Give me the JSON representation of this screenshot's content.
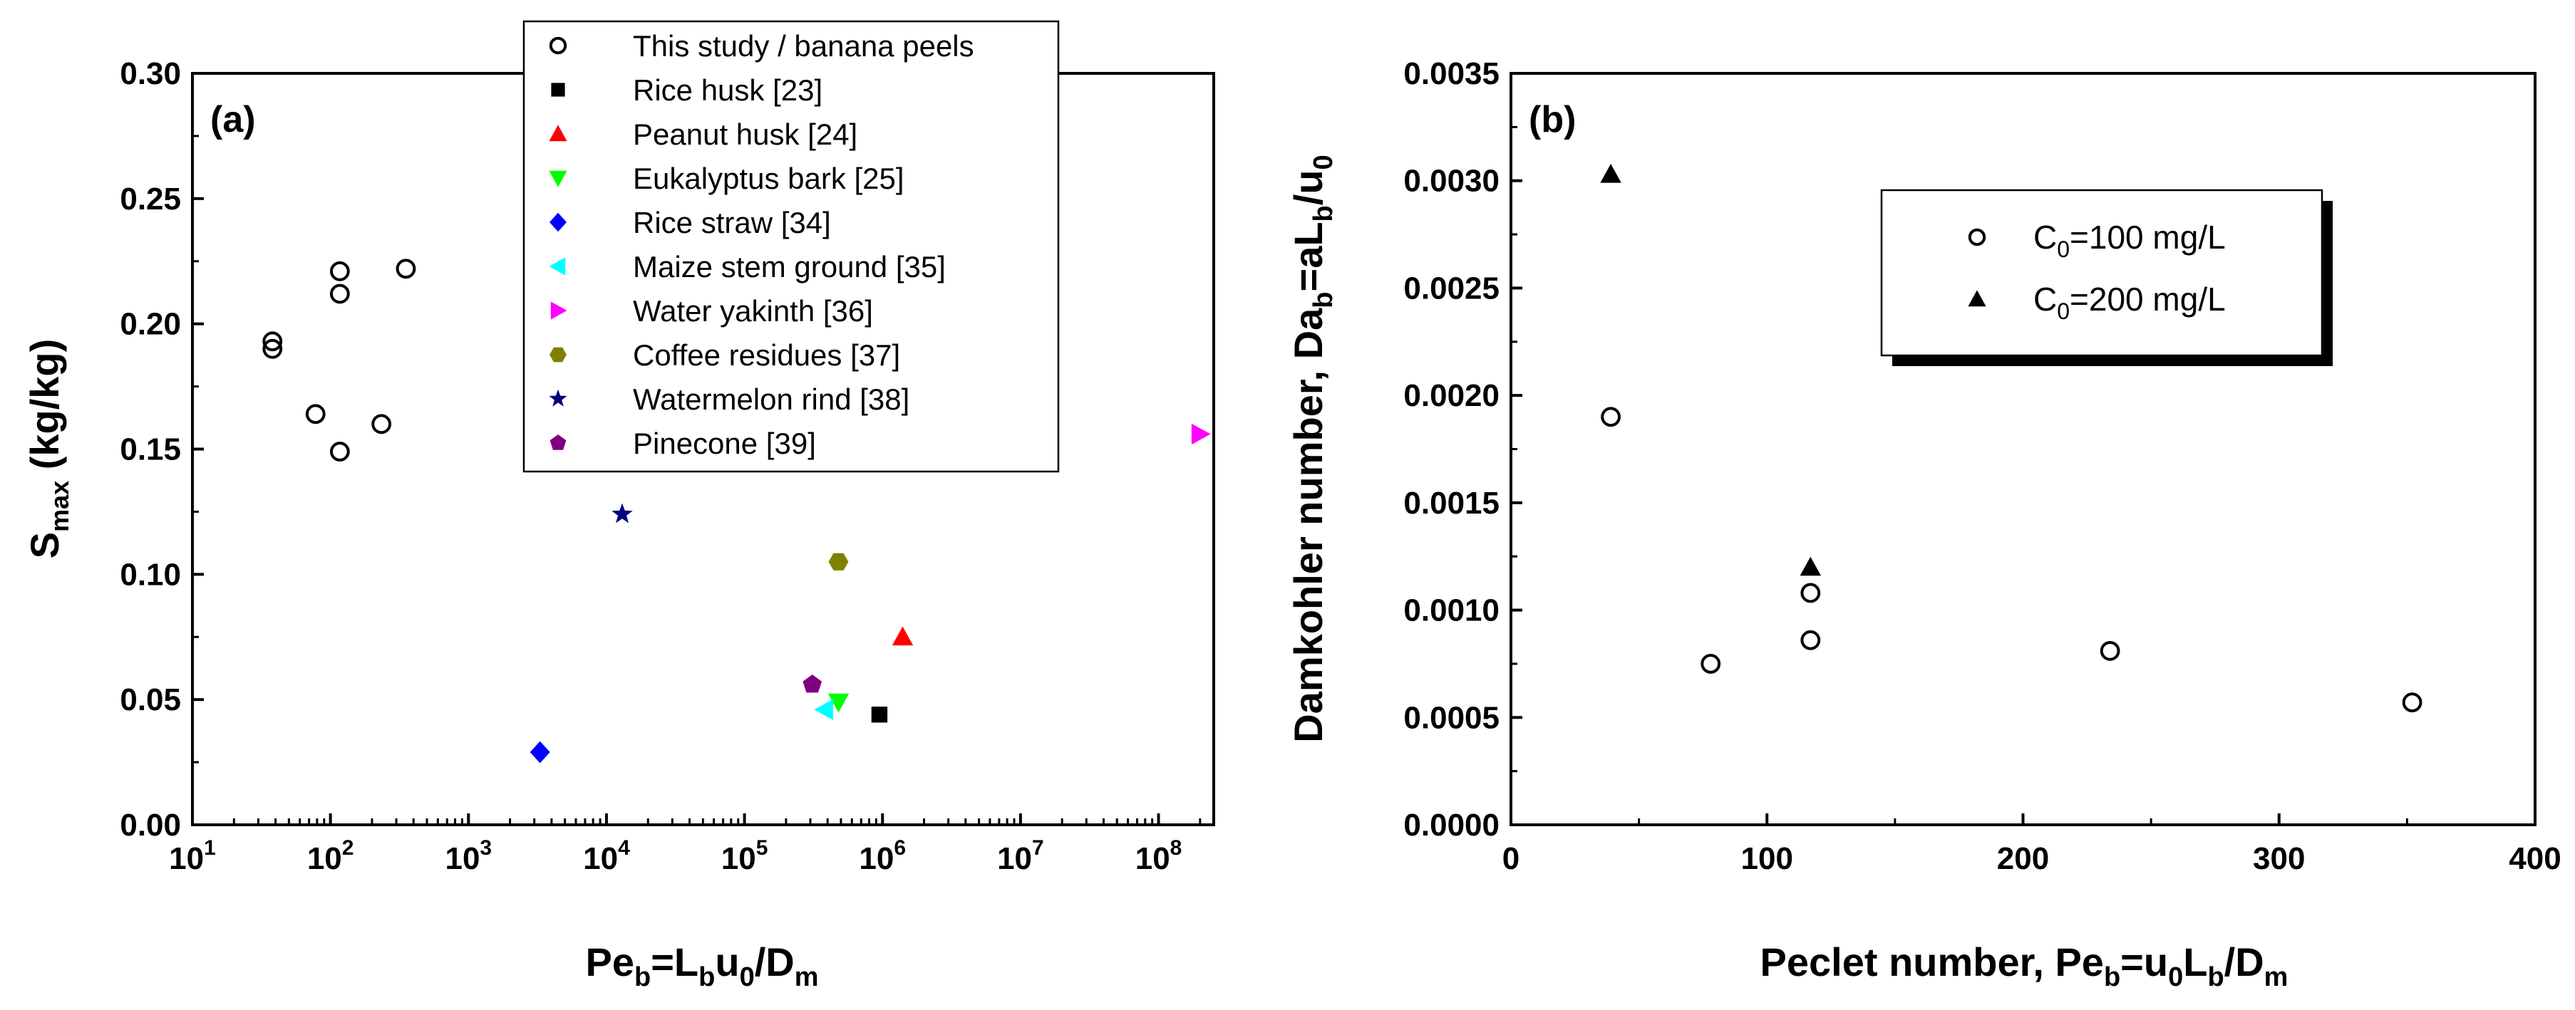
{
  "chart_data": [
    {
      "panel": "(a)",
      "type": "scatter",
      "xscale": "log",
      "xlim_exp": [
        1,
        8.4
      ],
      "ylim": [
        0,
        0.3
      ],
      "ylabel": {
        "main": "S",
        "sub": "max",
        "rest": " (kg/kg)"
      },
      "xlabel": {
        "main": "Pe",
        "sub1": "b",
        "mid": "=L",
        "sub2": "b",
        "mid2": "u",
        "sub3": "0",
        "mid3": "/D",
        "sub4": "m"
      },
      "yticks": [
        "0.00",
        "0.05",
        "0.10",
        "0.15",
        "0.20",
        "0.25",
        "0.30"
      ],
      "ytick_values": [
        0,
        0.05,
        0.1,
        0.15,
        0.2,
        0.25,
        0.3
      ],
      "xticks": [
        {
          "base": "10",
          "exp": "1"
        },
        {
          "base": "10",
          "exp": "2"
        },
        {
          "base": "10",
          "exp": "3"
        },
        {
          "base": "10",
          "exp": "4"
        },
        {
          "base": "10",
          "exp": "5"
        },
        {
          "base": "10",
          "exp": "6"
        },
        {
          "base": "10",
          "exp": "7"
        },
        {
          "base": "10",
          "exp": "8"
        }
      ],
      "series": [
        {
          "name": "This study / banana peels",
          "marker": "circle-open",
          "color": "#000000",
          "x": [
            38,
            38,
            78,
            117,
            117,
            117,
            234,
            352
          ],
          "y": [
            0.193,
            0.19,
            0.164,
            0.221,
            0.212,
            0.149,
            0.16,
            0.222
          ]
        },
        {
          "name": "Rice husk [23]",
          "marker": "square",
          "color": "#000000",
          "x": [
            950000
          ],
          "y": [
            0.044
          ]
        },
        {
          "name": "Peanut husk [24]",
          "marker": "triangle-up",
          "color": "#ff0000",
          "x": [
            1400000
          ],
          "y": [
            0.075
          ]
        },
        {
          "name": "Eukalyptus bark [25]",
          "marker": "triangle-down",
          "color": "#00ff00",
          "x": [
            480000
          ],
          "y": [
            0.049
          ]
        },
        {
          "name": "Rice straw [34]",
          "marker": "diamond",
          "color": "#0000ff",
          "x": [
            3300
          ],
          "y": [
            0.029
          ]
        },
        {
          "name": "Maize stem ground [35]",
          "marker": "triangle-left",
          "color": "#00ffff",
          "x": [
            380000
          ],
          "y": [
            0.046
          ]
        },
        {
          "name": "Water yakinth [36]",
          "marker": "triangle-right",
          "color": "#ff00ff",
          "x": [
            200000000
          ],
          "y": [
            0.156
          ]
        },
        {
          "name": "Coffee residues [37]",
          "marker": "hexagon",
          "color": "#808000",
          "x": [
            480000
          ],
          "y": [
            0.105
          ]
        },
        {
          "name": "Watermelon rind [38]",
          "marker": "star",
          "color": "#000080",
          "x": [
            13000
          ],
          "y": [
            0.124
          ]
        },
        {
          "name": "Pinecone [39]",
          "marker": "pentagon",
          "color": "#800080",
          "x": [
            310000
          ],
          "y": [
            0.056
          ]
        }
      ],
      "legend_position": "top-center"
    },
    {
      "panel": "(b)",
      "type": "scatter",
      "xlim": [
        0,
        400
      ],
      "ylim": [
        0,
        0.0035
      ],
      "xticks": [
        "0",
        "100",
        "200",
        "300",
        "400"
      ],
      "xtick_values": [
        0,
        100,
        200,
        300,
        400
      ],
      "yticks": [
        "0.0000",
        "0.0005",
        "0.0010",
        "0.0015",
        "0.0020",
        "0.0025",
        "0.0030",
        "0.0035"
      ],
      "ytick_values": [
        0,
        0.0005,
        0.001,
        0.0015,
        0.002,
        0.0025,
        0.003,
        0.0035
      ],
      "xlabel": {
        "main": "Peclet number, Pe",
        "sub1": "b",
        "mid": "=u",
        "sub2": "0",
        "mid2": "L",
        "sub3": "b",
        "mid3": "/D",
        "sub4": "m"
      },
      "ylabel": {
        "main": "Damkohler number, Da",
        "sub1": "b",
        "mid": "=aL",
        "sub2": "b",
        "mid2": "/u",
        "sub3": "0"
      },
      "series": [
        {
          "name": "C0=100 mg/L",
          "label_main": "C",
          "label_sub": "0",
          "label_rest": "=100 mg/L",
          "marker": "circle-open",
          "color": "#000000",
          "x": [
            39,
            78,
            117,
            117,
            234,
            352
          ],
          "y": [
            0.0019,
            0.00075,
            0.00108,
            0.00086,
            0.00081,
            0.00057
          ]
        },
        {
          "name": "C0=200 mg/L",
          "label_main": "C",
          "label_sub": "0",
          "label_rest": "=200 mg/L",
          "marker": "triangle-up",
          "color": "#000000",
          "x": [
            39,
            117
          ],
          "y": [
            0.00303,
            0.0012
          ]
        }
      ],
      "legend_position": "top-right"
    }
  ]
}
